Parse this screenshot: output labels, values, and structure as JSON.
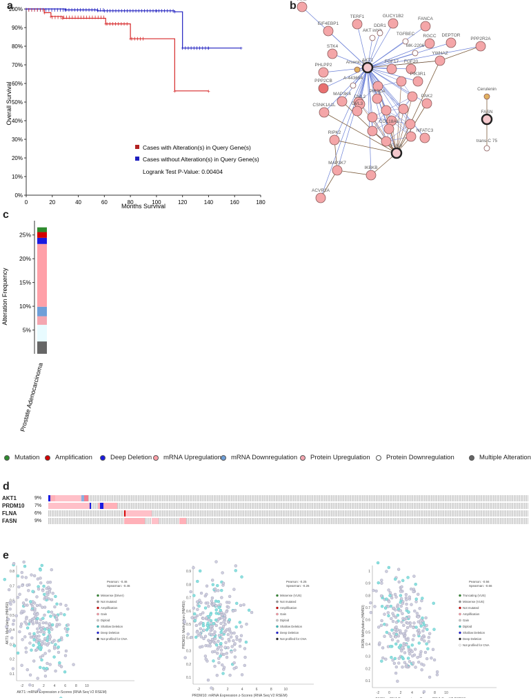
{
  "panels": {
    "a": "a",
    "b": "b",
    "c": "c",
    "d": "d",
    "e": "e"
  },
  "chart_data": [
    {
      "type": "line",
      "panel": "a",
      "title": "",
      "xlabel": "Months Survival",
      "ylabel": "Overall Survival",
      "xlim": [
        0,
        180
      ],
      "ylim": [
        0,
        100
      ],
      "x_ticks": [
        "0",
        "20",
        "40",
        "60",
        "80",
        "100",
        "120",
        "140",
        "160",
        "180"
      ],
      "y_ticks": [
        "0%",
        "10%",
        "20%",
        "30%",
        "40%",
        "50%",
        "60%",
        "70%",
        "80%",
        "90%",
        "100%"
      ],
      "series": [
        {
          "name": "Cases with Alteration(s) in Query Gene(s)",
          "color": "#d62728",
          "x": [
            0,
            14,
            19,
            28,
            61,
            80,
            114,
            140
          ],
          "y": [
            100,
            98,
            96,
            95,
            92,
            84,
            56,
            56
          ]
        },
        {
          "name": "Cases without Alteration(s) in Query Gene(s)",
          "color": "#1f1fbf",
          "x": [
            0,
            30,
            55,
            100,
            114,
            120,
            140,
            165
          ],
          "y": [
            100,
            99.5,
            99,
            99,
            98.5,
            79,
            79,
            79
          ]
        }
      ],
      "annotation": "Logrank Test P-Value: 0.00404"
    },
    {
      "type": "bar",
      "panel": "c",
      "title": "",
      "xlabel": "",
      "ylabel": "Alteration Frequency",
      "categories": [
        "Prostate Adenocarcinoma"
      ],
      "ylim": [
        0,
        28
      ],
      "y_ticks": [
        "5%",
        "10%",
        "15%",
        "20%",
        "25%"
      ],
      "stack": [
        {
          "name": "Multiple Alterations",
          "value": 2.6,
          "color": "#666666"
        },
        {
          "name": "Protein Downregulation",
          "value": 3.5,
          "color": "#e8fbff"
        },
        {
          "name": "Protein Upregulation",
          "value": 1.8,
          "color": "#f4a6b0"
        },
        {
          "name": "mRNA Downregulation",
          "value": 2.0,
          "color": "#6f9fd8"
        },
        {
          "name": "mRNA Upregulation",
          "value": 13.2,
          "color": "#ffa0a8"
        },
        {
          "name": "Deep Deletion",
          "value": 1.3,
          "color": "#1a1ae0"
        },
        {
          "name": "Amplification",
          "value": 1.2,
          "color": "#d40000"
        },
        {
          "name": "Mutation",
          "value": 1.0,
          "color": "#2e8b2e"
        }
      ]
    }
  ],
  "network": {
    "nodes": [
      "ATM",
      "TERF1",
      "GUCY1B2",
      "FANCA",
      "EIF4EBP1",
      "AKT inhib",
      "DDR1",
      "TGFBEC",
      "RGCC",
      "MK-2206",
      "DEPTOR",
      "STK4",
      "Arsenic tr...",
      "AKT1",
      "FGF17",
      "FGF20",
      "YWHAZ",
      "PPP2R2A",
      "PHLPP2",
      "A-443654",
      "PIK3R1",
      "PPP2CB",
      "MAP3K4",
      "DVL2",
      "PIK3CA",
      "DVL3",
      "CSNK1A1L",
      "PAK2",
      "COL18A1",
      "FLNA",
      "NFATC3",
      "RIPK2",
      "MAP3K7",
      "IKBKB",
      "ACVR2A",
      "Cerulenin",
      "FASN",
      "trans-C 75"
    ]
  },
  "legend": {
    "items": [
      {
        "label": "Mutation",
        "color": "#2e8b2e"
      },
      {
        "label": "Amplification",
        "color": "#d40000"
      },
      {
        "label": "Deep Deletion",
        "color": "#1a1ae0"
      },
      {
        "label": "mRNA Upregulation",
        "color": "#ffa0a8"
      },
      {
        "label": "mRNA Downregulation",
        "color": "#6f9fd8"
      },
      {
        "label": "Protein Upregulation",
        "color": "#f4a6b0"
      },
      {
        "label": "Protein Downregulation",
        "color": "#ffffff"
      },
      {
        "label": "Multiple Alterations",
        "color": "#666666"
      }
    ]
  },
  "oncoprint": {
    "rows": [
      {
        "gene": "AKT1",
        "pct": "9%"
      },
      {
        "gene": "PRDM10",
        "pct": "7%"
      },
      {
        "gene": "FLNA",
        "pct": "6%"
      },
      {
        "gene": "FASN",
        "pct": "9%"
      }
    ]
  },
  "scatter": [
    {
      "xlabel": "AKT1: mRNA Expression z-Scores (RNA Seq V2 RSEM)",
      "ylabel": "AKT1: Methylation (HM450)",
      "pearson": "Pearson: -0.46",
      "spearman": "Spearman: -0.46",
      "legend": [
        "Missense (Driver)",
        "Not mutated",
        "Amplification",
        "Gain",
        "Diploid",
        "Shallow Deletion",
        "Deep Deletion",
        "Not profiled for CNA"
      ],
      "x_ticks": [
        "-2",
        "0",
        "2",
        "4",
        "6",
        "8",
        "10"
      ],
      "y_ticks": [
        "0.1",
        "0.2",
        "0.3",
        "0.4",
        "0.5",
        "0.6",
        "0.7",
        "0.8"
      ]
    },
    {
      "xlabel": "PRDM10: mRNA Expression z-Scores (RNA Seq V2 RSEM)",
      "ylabel": "PRDM10: Methylation (HM450)",
      "pearson": "Pearson: -0.25",
      "spearman": "Spearman: -0.26",
      "legend": [
        "Missense (VUS)",
        "Not mutated",
        "Amplification",
        "Gain",
        "Diploid",
        "Shallow Deletion",
        "Deep Deletion",
        "Not profiled for CNA"
      ],
      "x_ticks": [
        "-2",
        "0",
        "2",
        "4",
        "6",
        "8",
        "10"
      ],
      "y_ticks": [
        "0.1",
        "0.2",
        "0.3",
        "0.4",
        "0.5",
        "0.6",
        "0.7",
        "0.8",
        "0.9"
      ]
    },
    {
      "xlabel": "FASN: mRNA Expression z-Scores (RNA Seq V2 RSEM)",
      "ylabel": "FASN: Methylation (HM450)",
      "pearson": "Pearson: -0.56",
      "spearman": "Spearman: -0.66",
      "legend": [
        "Truncating (VUS)",
        "Missense (VUS)",
        "Not mutated",
        "Amplification",
        "Gain",
        "Diploid",
        "Shallow Deletion",
        "Deep Deletion",
        "Not profiled for CNA"
      ],
      "x_ticks": [
        "-2",
        "0",
        "2",
        "4",
        "6",
        "8",
        "10"
      ],
      "y_ticks": [
        "0.1",
        "0.2",
        "0.3",
        "0.4",
        "0.5",
        "0.6",
        "0.7",
        "0.8",
        "0.9",
        "1"
      ]
    }
  ]
}
